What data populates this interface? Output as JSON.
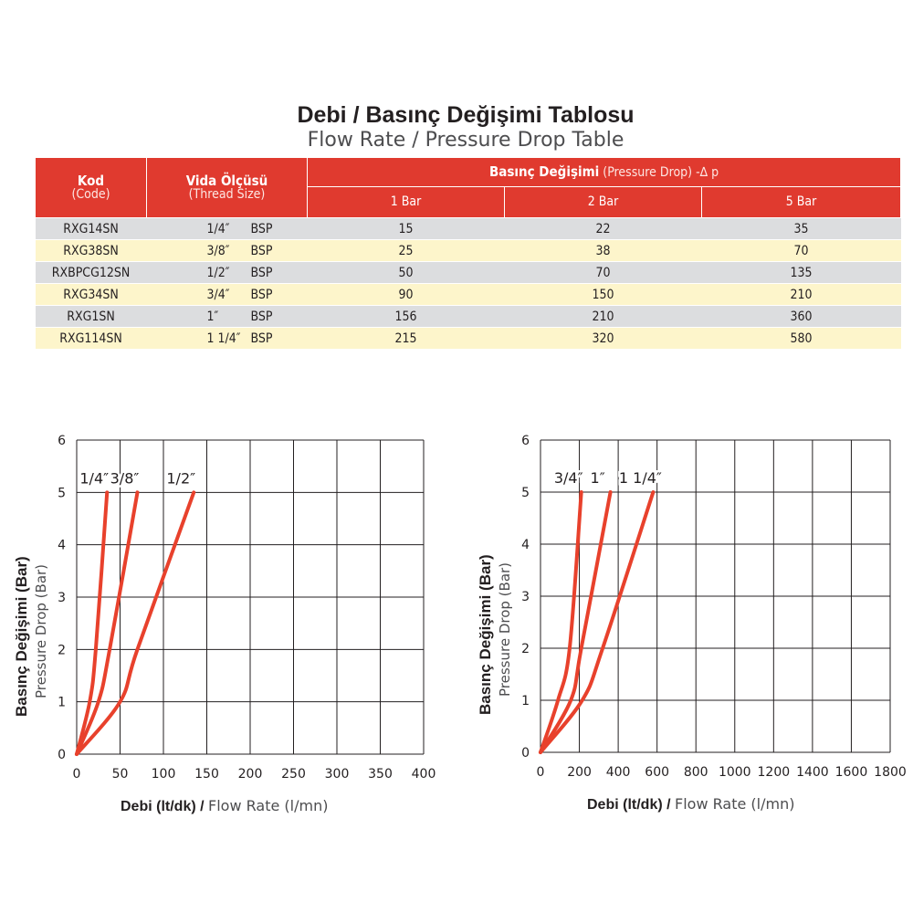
{
  "title": {
    "tr": "Debi / Basınç Değişimi Tablosu",
    "en": "Flow Rate / Pressure Drop Table"
  },
  "table": {
    "headers": {
      "code": "Kod",
      "code_en": "(Code)",
      "thread": "Vida Ölçüsü",
      "thread_en": "(Thread Size)",
      "pressure": "Basınç Değişimi",
      "pressure_en": "(Pressure Drop) -∆ p",
      "bars": [
        "1 Bar",
        "2 Bar",
        "5 Bar"
      ]
    },
    "rows": [
      {
        "code": "RXG14SN",
        "size": "1/4″",
        "thread": "BSP",
        "v1": "15",
        "v2": "22",
        "v5": "35"
      },
      {
        "code": "RXG38SN",
        "size": "3/8″",
        "thread": "BSP",
        "v1": "25",
        "v2": "38",
        "v5": "70"
      },
      {
        "code": "RXBPCG12SN",
        "size": "1/2″",
        "thread": "BSP",
        "v1": "50",
        "v2": "70",
        "v5": "135"
      },
      {
        "code": "RXG34SN",
        "size": "3/4″",
        "thread": "BSP",
        "v1": "90",
        "v2": "150",
        "v5": "210"
      },
      {
        "code": "RXG1SN",
        "size": "1″",
        "thread": "BSP",
        "v1": "156",
        "v2": "210",
        "v5": "360"
      },
      {
        "code": "RXG114SN",
        "size": "1 1/4″",
        "thread": "BSP",
        "v1": "215",
        "v2": "320",
        "v5": "580"
      }
    ]
  },
  "colors": {
    "header_red": "#e03a2f",
    "curve_red": "#e8412c",
    "row_gray": "#dcdddf",
    "row_yellow": "#fdf5cb"
  },
  "chart_data": [
    {
      "type": "line",
      "ylabel_tr": "Basınç Değişimi (Bar)",
      "ylabel_en": "Pressure Drop (Bar)",
      "xlabel_tr": "Debi (lt/dk) /",
      "xlabel_en": "Flow Rate (l/mn)",
      "xlim": [
        0,
        400
      ],
      "ylim": [
        0,
        6
      ],
      "xticks": [
        0,
        50,
        100,
        150,
        200,
        250,
        300,
        350,
        400
      ],
      "yticks": [
        0,
        1,
        2,
        3,
        4,
        5,
        6
      ],
      "grid": true,
      "series": [
        {
          "name": "1/4″",
          "x": [
            0,
            15,
            22,
            35
          ],
          "y": [
            0,
            1,
            2,
            5
          ]
        },
        {
          "name": "3/8″",
          "x": [
            0,
            25,
            38,
            70
          ],
          "y": [
            0,
            1,
            2,
            5
          ]
        },
        {
          "name": "1/2″",
          "x": [
            0,
            50,
            70,
            135
          ],
          "y": [
            0,
            1,
            2,
            5
          ]
        }
      ]
    },
    {
      "type": "line",
      "ylabel_tr": "Basınç Değişimi (Bar)",
      "ylabel_en": "Pressure Drop (Bar)",
      "xlabel_tr": "Debi (lt/dk) /",
      "xlabel_en": "Flow Rate (l/mn)",
      "xlim": [
        0,
        1800
      ],
      "ylim": [
        0,
        6
      ],
      "xticks": [
        0,
        200,
        400,
        600,
        800,
        1000,
        1200,
        1400,
        1600,
        1800
      ],
      "yticks": [
        0,
        1,
        2,
        3,
        4,
        5,
        6
      ],
      "grid": true,
      "series": [
        {
          "name": "3/4″",
          "x": [
            0,
            90,
            150,
            210
          ],
          "y": [
            0,
            1,
            2,
            5
          ]
        },
        {
          "name": "1″",
          "x": [
            0,
            156,
            210,
            360
          ],
          "y": [
            0,
            1,
            2,
            5
          ]
        },
        {
          "name": "1 1/4″",
          "x": [
            0,
            215,
            320,
            580
          ],
          "y": [
            0,
            1,
            2,
            5
          ]
        }
      ]
    }
  ]
}
